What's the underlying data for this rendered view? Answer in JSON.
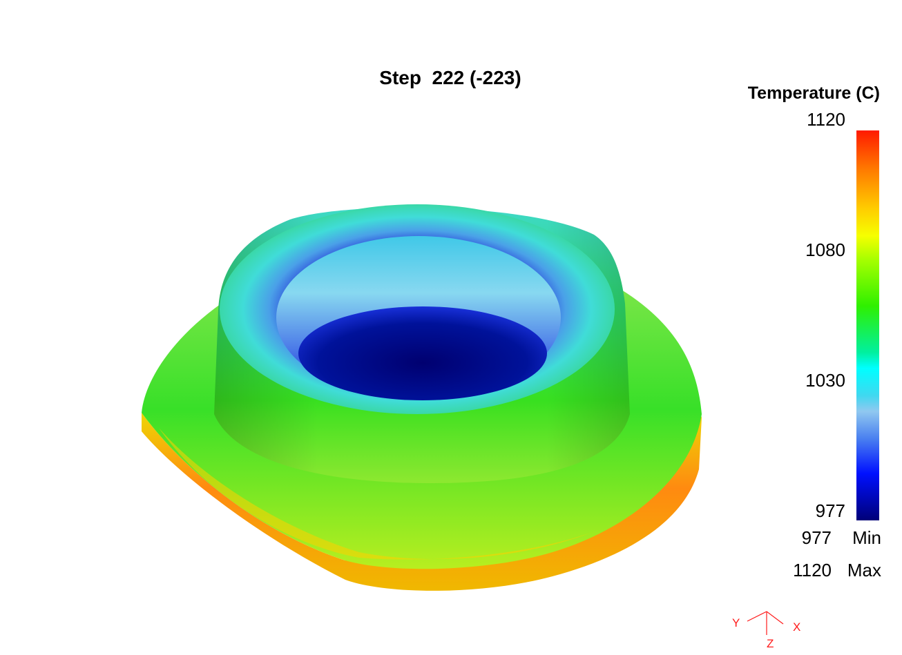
{
  "viewer": {
    "title": "Step  222 (-223)",
    "legend": {
      "title": "Temperature (C)",
      "ticks": [
        {
          "label": "1120",
          "value": 1120
        },
        {
          "label": "1080",
          "value": 1080
        },
        {
          "label": "1030",
          "value": 1030
        },
        {
          "label": "977",
          "value": 977
        }
      ],
      "min_value": "977",
      "min_label": "Min",
      "max_value": "1120",
      "max_label": "Max",
      "colormap": [
        "#000078",
        "#0010ff",
        "#4a80f0",
        "#90c8f0",
        "#00ffff",
        "#2ff000",
        "#a8ff00",
        "#f6ff00",
        "#ffcc00",
        "#ff7a00",
        "#ff1a00"
      ]
    },
    "axes": {
      "x": "X",
      "y": "Y",
      "z": "Z",
      "color": "#ff1a1a"
    },
    "model": {
      "name": "temperature-contour-part",
      "colors": {
        "hot": "#ff6a00",
        "warm": "#e6f500",
        "mid": "#2fe000",
        "cool": "#3ee6e0",
        "cold": "#2a40d8",
        "coldest": "#000090"
      }
    }
  }
}
